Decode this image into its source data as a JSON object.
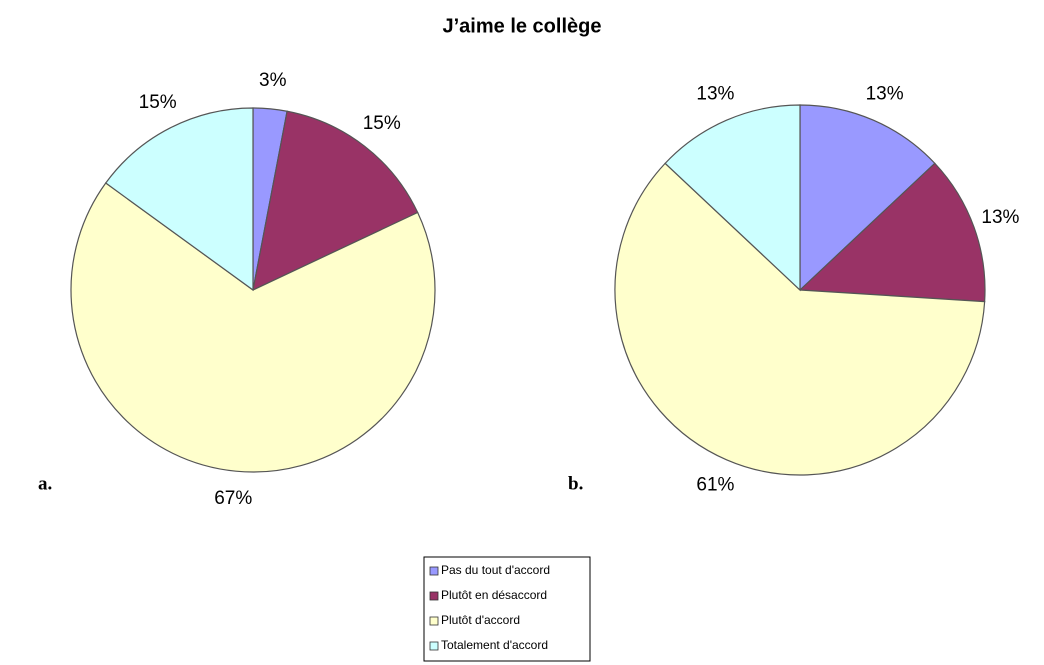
{
  "title": "J’aime le collège",
  "categories": [
    "Pas du tout d'accord",
    "Plutôt en désaccord",
    "Plutôt d'accord",
    "Totalement d'accord"
  ],
  "colors": [
    "#9999ff",
    "#993366",
    "#ffffcc",
    "#ccffff"
  ],
  "chart_data": [
    {
      "type": "pie",
      "panel_label": "a.",
      "values": [
        3,
        15,
        67,
        15
      ],
      "value_labels": [
        "3%",
        "15%",
        "67%",
        "15%"
      ]
    },
    {
      "type": "pie",
      "panel_label": "b.",
      "values": [
        13,
        13,
        61,
        13
      ],
      "value_labels": [
        "13%",
        "13%",
        "61%",
        "13%"
      ]
    }
  ]
}
